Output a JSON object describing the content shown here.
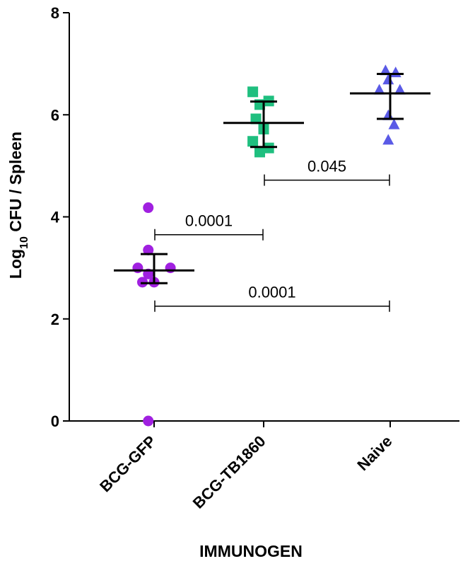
{
  "chart_data": {
    "type": "scatter",
    "title": "",
    "xlabel": "IMMUNOGEN",
    "ylabel": {
      "prefix": "Log",
      "subscript": "10",
      "suffix": " CFU / Spleen"
    },
    "ylim": [
      0,
      8
    ],
    "yticks": [
      0,
      2,
      4,
      6,
      8
    ],
    "grid": false,
    "legend": "none",
    "categories": [
      "BCG-GFP",
      "BCG-TB1860",
      "Naive"
    ],
    "series": [
      {
        "category": "BCG-GFP",
        "marker": "circle",
        "color": "#a020e0",
        "points": [
          {
            "dx": -0.15,
            "y": 4.18
          },
          {
            "dx": -0.15,
            "y": 3.35
          },
          {
            "dx": -0.42,
            "y": 3.0
          },
          {
            "dx": 0.42,
            "y": 3.0
          },
          {
            "dx": -0.3,
            "y": 2.72
          },
          {
            "dx": 0.0,
            "y": 2.72
          },
          {
            "dx": -0.15,
            "y": 2.88
          },
          {
            "dx": -0.15,
            "y": 0.0
          }
        ],
        "mean": 2.95,
        "error_upper": 3.27,
        "error_lower": 2.7
      },
      {
        "category": "BCG-TB1860",
        "marker": "square",
        "color": "#1fbf7f",
        "points": [
          {
            "dx": -0.28,
            "y": 6.45
          },
          {
            "dx": 0.13,
            "y": 6.27
          },
          {
            "dx": -0.1,
            "y": 6.2
          },
          {
            "dx": -0.2,
            "y": 5.92
          },
          {
            "dx": 0.0,
            "y": 5.72
          },
          {
            "dx": -0.28,
            "y": 5.48
          },
          {
            "dx": 0.13,
            "y": 5.35
          },
          {
            "dx": -0.1,
            "y": 5.27
          }
        ],
        "mean": 5.84,
        "error_upper": 6.26,
        "error_lower": 5.37
      },
      {
        "category": "Naive",
        "marker": "triangle",
        "color": "#5a5ae6",
        "points": [
          {
            "dx": -0.12,
            "y": 6.86
          },
          {
            "dx": 0.14,
            "y": 6.82
          },
          {
            "dx": -0.05,
            "y": 6.68
          },
          {
            "dx": 0.25,
            "y": 6.48
          },
          {
            "dx": -0.28,
            "y": 6.48
          },
          {
            "dx": -0.05,
            "y": 5.98
          },
          {
            "dx": 0.1,
            "y": 5.8
          },
          {
            "dx": -0.05,
            "y": 5.5
          }
        ],
        "mean": 6.42,
        "error_upper": 6.8,
        "error_lower": 5.92
      }
    ],
    "comparisons": [
      {
        "from": "BCG-GFP",
        "to": "BCG-TB1860",
        "y": 3.65,
        "label": "0.0001"
      },
      {
        "from": "BCG-TB1860",
        "to": "Naive",
        "y": 4.72,
        "label": "0.045"
      },
      {
        "from": "BCG-GFP",
        "to": "Naive",
        "y": 2.25,
        "label": "0.0001"
      }
    ]
  }
}
